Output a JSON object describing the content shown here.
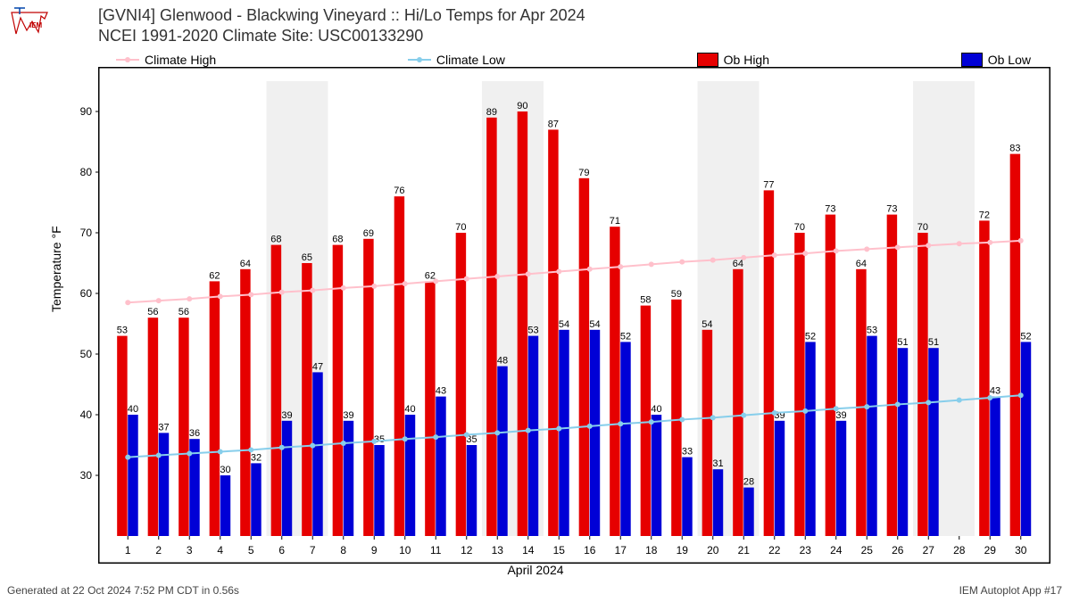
{
  "title_line1": "[GVNI4] Glenwood - Blackwing Vineyard :: Hi/Lo Temps for Apr 2024",
  "title_line2": "NCEI 1991-2020 Climate Site: USC00133290",
  "legend": {
    "climate_high": "Climate High",
    "climate_low": "Climate Low",
    "ob_high": "Ob High",
    "ob_low": "Ob Low"
  },
  "ylabel": "Temperature °F",
  "xlabel": "April 2024",
  "footer_left": "Generated at 22 Oct 2024 7:52 PM CDT in 0.56s",
  "footer_right": "IEM Autoplot App #17",
  "chart": {
    "type": "bar+line",
    "ylim": [
      20,
      95
    ],
    "ytick_step": 10,
    "xlim": [
      0.5,
      30.5
    ],
    "days": [
      1,
      2,
      3,
      4,
      5,
      6,
      7,
      8,
      9,
      10,
      11,
      12,
      13,
      14,
      15,
      16,
      17,
      18,
      19,
      20,
      21,
      22,
      23,
      24,
      25,
      26,
      27,
      28,
      29,
      30
    ],
    "ob_high": [
      53,
      56,
      56,
      62,
      64,
      68,
      65,
      68,
      69,
      76,
      62,
      70,
      89,
      90,
      87,
      79,
      71,
      58,
      59,
      54,
      64,
      77,
      70,
      73,
      64,
      73,
      70,
      null,
      72,
      83
    ],
    "ob_low": [
      40,
      37,
      36,
      30,
      32,
      39,
      47,
      39,
      35,
      40,
      43,
      35,
      48,
      53,
      54,
      54,
      52,
      40,
      33,
      31,
      28,
      39,
      52,
      39,
      53,
      51,
      51,
      null,
      43,
      52
    ],
    "climate_high": [
      58.5,
      58.8,
      59.1,
      59.5,
      59.8,
      60.2,
      60.5,
      60.9,
      61.2,
      61.6,
      62.0,
      62.4,
      62.8,
      63.2,
      63.6,
      64.0,
      64.4,
      64.8,
      65.2,
      65.5,
      65.9,
      66.3,
      66.6,
      67.0,
      67.3,
      67.6,
      67.9,
      68.2,
      68.4,
      68.7
    ],
    "climate_low": [
      33.0,
      33.3,
      33.6,
      33.9,
      34.2,
      34.6,
      34.9,
      35.3,
      35.6,
      36.0,
      36.3,
      36.7,
      37.0,
      37.4,
      37.7,
      38.1,
      38.5,
      38.8,
      39.2,
      39.5,
      39.9,
      40.3,
      40.6,
      41.0,
      41.3,
      41.7,
      42.0,
      42.4,
      42.8,
      43.2
    ],
    "weekend_bands": [
      [
        5.5,
        7.5
      ],
      [
        12.5,
        14.5
      ],
      [
        19.5,
        21.5
      ],
      [
        26.5,
        28.5
      ]
    ],
    "colors": {
      "ob_high_bar": "#e60000",
      "ob_low_bar": "#0000d6",
      "climate_high_line": "#ffc0cb",
      "climate_low_line": "#87ceeb",
      "weekend_fill": "#f0f0f0",
      "grid": "#dddddd",
      "text": "#000000"
    },
    "bar_width": 0.35,
    "line_marker_r": 3,
    "font": {
      "tick": 12,
      "datalabel": 11
    }
  }
}
